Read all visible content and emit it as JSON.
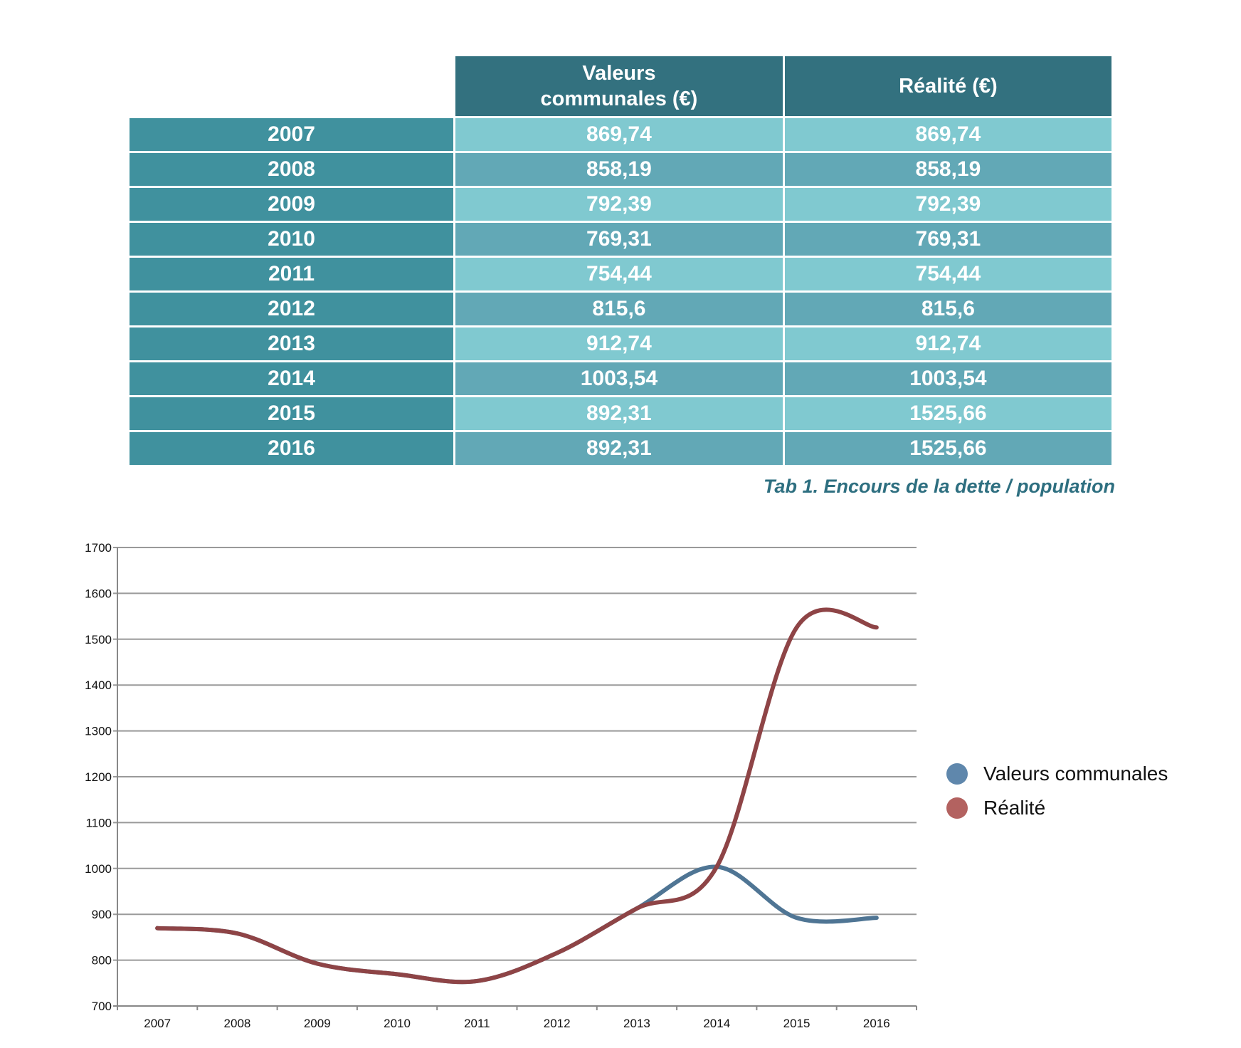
{
  "table": {
    "headers": [
      "",
      "Valeurs communales (€)",
      "Réalité (€)"
    ],
    "rows": [
      {
        "year": "2007",
        "valeurs": "869,74",
        "realite": "869,74"
      },
      {
        "year": "2008",
        "valeurs": "858,19",
        "realite": "858,19"
      },
      {
        "year": "2009",
        "valeurs": "792,39",
        "realite": "792,39"
      },
      {
        "year": "2010",
        "valeurs": "769,31",
        "realite": "769,31"
      },
      {
        "year": "2011",
        "valeurs": "754,44",
        "realite": "754,44"
      },
      {
        "year": "2012",
        "valeurs": "815,6",
        "realite": "815,6"
      },
      {
        "year": "2013",
        "valeurs": "912,74",
        "realite": "912,74"
      },
      {
        "year": "2014",
        "valeurs": "1003,54",
        "realite": "1003,54"
      },
      {
        "year": "2015",
        "valeurs": "892,31",
        "realite": "1525,66"
      },
      {
        "year": "2016",
        "valeurs": "892,31",
        "realite": "1525,66"
      }
    ],
    "caption": "Tab 1. Encours de la dette / population"
  },
  "chart_data": {
    "type": "line",
    "title": "",
    "xlabel": "",
    "ylabel": "",
    "categories": [
      "2007",
      "2008",
      "2009",
      "2010",
      "2011",
      "2012",
      "2013",
      "2014",
      "2015",
      "2016"
    ],
    "yticks": [
      "700",
      "800",
      "900",
      "1000",
      "1100",
      "1200",
      "1300",
      "1400",
      "1500",
      "1600",
      "1700"
    ],
    "ylim": [
      700,
      1700
    ],
    "grid": true,
    "legend_position": "right",
    "series": [
      {
        "name": "Valeurs communales",
        "color": "#4f7594",
        "legend_color": "#5f87ac",
        "values": [
          869.74,
          858.19,
          792.39,
          769.31,
          754.44,
          815.6,
          912.74,
          1003.54,
          892.31,
          892.31
        ]
      },
      {
        "name": "Réalité",
        "color": "#8e4446",
        "legend_color": "#b36260",
        "values": [
          869.74,
          858.19,
          792.39,
          769.31,
          754.44,
          815.6,
          912.74,
          1003.54,
          1525.66,
          1525.66
        ]
      }
    ]
  }
}
